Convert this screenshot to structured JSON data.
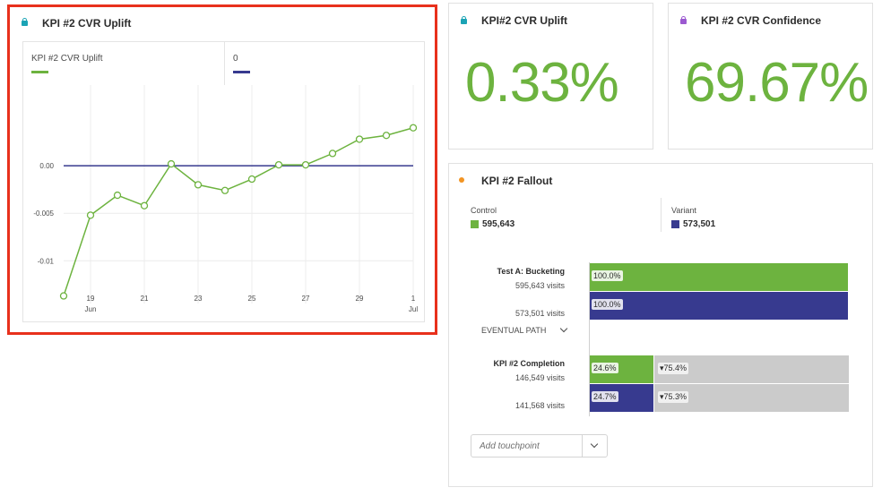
{
  "colors": {
    "accent_green": "#6db33f",
    "accent_navy": "#373a8f",
    "lock_teal": "#1ba3b5",
    "lock_purple": "#9b59d0",
    "dot_orange": "#f29423",
    "drop_gray": "#cbcbcb",
    "highlight_red": "#e8301c"
  },
  "chart_panel": {
    "title": "KPI #2 CVR Uplift",
    "icon": "lock-icon",
    "legend": [
      {
        "label": "KPI #2 CVR Uplift",
        "color": "#6db33f"
      },
      {
        "label": "0",
        "color": "#373a8f"
      }
    ]
  },
  "chart_data": {
    "type": "line",
    "x": [
      "Jun 18",
      "Jun 19",
      "Jun 20",
      "Jun 21",
      "Jun 22",
      "Jun 23",
      "Jun 24",
      "Jun 25",
      "Jun 26",
      "Jun 27",
      "Jun 28",
      "Jun 29",
      "Jun 30",
      "Jul 1"
    ],
    "series": [
      {
        "name": "KPI #2 CVR Uplift",
        "color": "#6db33f",
        "values": [
          -0.0137,
          -0.0052,
          -0.0031,
          -0.0042,
          0.0002,
          -0.002,
          -0.0026,
          -0.0014,
          0.0001,
          0.0001,
          0.0013,
          0.0028,
          0.0032,
          0.004
        ]
      },
      {
        "name": "0",
        "color": "#373a8f",
        "values": [
          0,
          0,
          0,
          0,
          0,
          0,
          0,
          0,
          0,
          0,
          0,
          0,
          0,
          0
        ]
      }
    ],
    "y_ticks": [
      {
        "value": 0,
        "label": "0.00"
      },
      {
        "value": -0.005,
        "label": "-0.005"
      },
      {
        "value": -0.01,
        "label": "-0.01"
      }
    ],
    "x_ticks": [
      {
        "index": 1,
        "day": "19",
        "month": "Jun"
      },
      {
        "index": 3,
        "day": "21",
        "month": ""
      },
      {
        "index": 5,
        "day": "23",
        "month": ""
      },
      {
        "index": 7,
        "day": "25",
        "month": ""
      },
      {
        "index": 9,
        "day": "27",
        "month": ""
      },
      {
        "index": 11,
        "day": "29",
        "month": ""
      },
      {
        "index": 13,
        "day": "1",
        "month": "Jul"
      }
    ],
    "ylim": [
      -0.0145,
      0.0085
    ],
    "grid": true,
    "legend_position": "top"
  },
  "uplift_panel": {
    "title": "KPI#2 CVR Uplift",
    "icon": "lock-icon",
    "value": "0.33%"
  },
  "confidence_panel": {
    "title": "KPI #2 CVR Confidence",
    "icon": "lock-icon",
    "value": "69.67%"
  },
  "fallout": {
    "title": "KPI #2 Fallout",
    "icon": "dot-icon",
    "segments": [
      {
        "label": "Control",
        "count": "595,643",
        "color": "#6db33f"
      },
      {
        "label": "Variant",
        "count": "573,501",
        "color": "#373a8f"
      }
    ],
    "touchpoints": [
      {
        "name": "Test A: Bucketing",
        "rows": [
          {
            "visits": "595,643 visits",
            "percent": "100.0%",
            "fraction": 1.0,
            "drop": "",
            "color": "#6db33f"
          },
          {
            "visits": "573,501 visits",
            "percent": "100.0%",
            "fraction": 1.0,
            "drop": "",
            "color": "#373a8f"
          }
        ]
      },
      {
        "name": "KPI #2 Completion",
        "rows": [
          {
            "visits": "146,549 visits",
            "percent": "24.6%",
            "fraction": 0.246,
            "drop": "▾75.4%",
            "color": "#6db33f"
          },
          {
            "visits": "141,568 visits",
            "percent": "24.7%",
            "fraction": 0.247,
            "drop": "▾75.3%",
            "color": "#373a8f"
          }
        ]
      }
    ],
    "eventual_path": "EVENTUAL PATH",
    "add_touchpoint_placeholder": "Add touchpoint"
  }
}
